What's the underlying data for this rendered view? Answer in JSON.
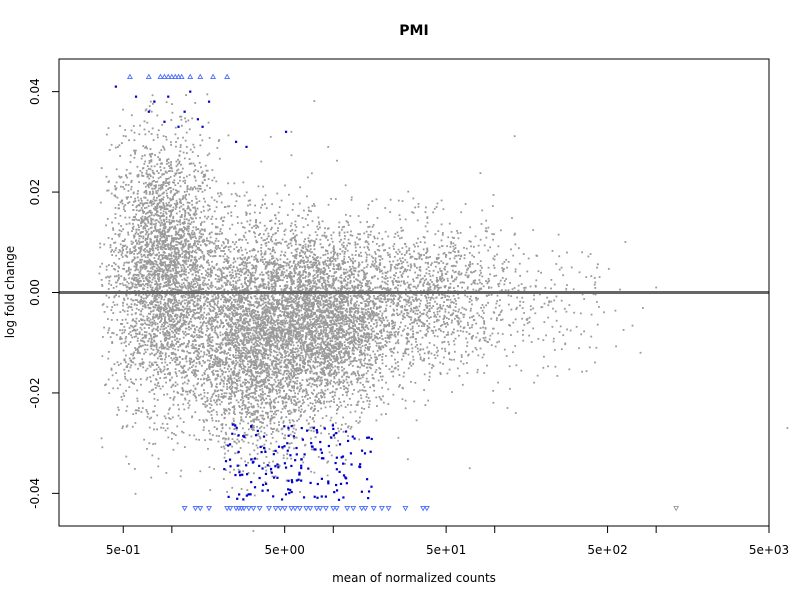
{
  "chart_data": {
    "type": "scatter",
    "title": "PMI",
    "xlabel": "mean of normalized counts",
    "ylabel": "log fold change",
    "x_scale": "log",
    "xlim": [
      0.2,
      5000
    ],
    "ylim": [
      -0.0465,
      0.0465
    ],
    "x_ticks": [
      {
        "value": 0.5,
        "label": "5e-01"
      },
      {
        "value": 5,
        "label": "5e+00"
      },
      {
        "value": 50,
        "label": "5e+01"
      },
      {
        "value": 500,
        "label": "5e+02"
      },
      {
        "value": 5000,
        "label": "5e+03"
      }
    ],
    "x_minor_ticks": [
      1,
      10,
      100,
      1000
    ],
    "y_ticks": [
      {
        "value": -0.04,
        "label": "-0.04"
      },
      {
        "value": -0.02,
        "label": "-0.02"
      },
      {
        "value": 0.0,
        "label": "0.00"
      },
      {
        "value": 0.02,
        "label": "0.02"
      },
      {
        "value": 0.04,
        "label": "0.04"
      }
    ],
    "reference_line": {
      "y": 0,
      "color": "#666666"
    },
    "grid": false,
    "colors": {
      "not_significant": "#9a9a9a",
      "significant": "#0000cc",
      "clipped_marker": "#4a6cff",
      "outlier_marker": "#999999"
    },
    "series": [
      {
        "kind": "not_significant_points",
        "clusters": [
          {
            "log10_x_mean": -0.05,
            "log10_x_sd": 0.17,
            "y_mean": 0.004,
            "y_sd": 0.013,
            "n": 3400
          },
          {
            "log10_x_mean": 0.5,
            "log10_x_sd": 0.2,
            "y_mean": -0.009,
            "y_sd": 0.011,
            "n": 3400
          },
          {
            "log10_x_mean": 0.95,
            "log10_x_sd": 0.2,
            "y_mean": -0.006,
            "y_sd": 0.009,
            "n": 3000
          },
          {
            "log10_x_mean": 1.55,
            "log10_x_sd": 0.3,
            "y_mean": -0.001,
            "y_sd": 0.0075,
            "n": 1500
          },
          {
            "log10_x_mean": 2.3,
            "log10_x_sd": 0.25,
            "y_mean": -0.003,
            "y_sd": 0.006,
            "n": 140
          }
        ],
        "scattered_points": [
          {
            "x": 3.2,
            "y": -0.0475
          },
          {
            "x": 4.1,
            "y": 0.031
          },
          {
            "x": 5.5,
            "y": 0.032
          },
          {
            "x": 9.3,
            "y": 0.029
          },
          {
            "x": 70,
            "y": -0.035
          },
          {
            "x": 120,
            "y": -0.023
          },
          {
            "x": 135,
            "y": -0.024
          },
          {
            "x": 200,
            "y": -0.015
          },
          {
            "x": 300,
            "y": 0.005
          },
          {
            "x": 400,
            "y": 0.0
          },
          {
            "x": 420,
            "y": 0.002
          },
          {
            "x": 800,
            "y": -0.012
          },
          {
            "x": 1000,
            "y": 0.001
          },
          {
            "x": 6500,
            "y": -0.027
          }
        ]
      },
      {
        "kind": "significant_up_points",
        "points": [
          {
            "x": 0.45,
            "y": 0.041
          },
          {
            "x": 0.6,
            "y": 0.039
          },
          {
            "x": 0.72,
            "y": 0.036
          },
          {
            "x": 0.78,
            "y": 0.038
          },
          {
            "x": 0.9,
            "y": 0.034
          },
          {
            "x": 0.95,
            "y": 0.039
          },
          {
            "x": 1.1,
            "y": 0.033
          },
          {
            "x": 1.2,
            "y": 0.036
          },
          {
            "x": 1.3,
            "y": 0.04
          },
          {
            "x": 1.45,
            "y": 0.0345
          },
          {
            "x": 1.55,
            "y": 0.033
          },
          {
            "x": 1.7,
            "y": 0.038
          },
          {
            "x": 2.5,
            "y": 0.03
          },
          {
            "x": 2.9,
            "y": 0.029
          },
          {
            "x": 5.1,
            "y": 0.032
          }
        ]
      },
      {
        "kind": "significant_down_points",
        "n": 170,
        "log10_x_range": [
          0.3,
          1.25
        ],
        "y_range": [
          -0.0415,
          -0.026
        ]
      },
      {
        "kind": "clipped_up_markers",
        "y": 0.043,
        "x": [
          0.55,
          0.72,
          0.85,
          0.9,
          0.95,
          1.0,
          1.05,
          1.1,
          1.15,
          1.3,
          1.5,
          1.8,
          2.2
        ]
      },
      {
        "kind": "clipped_down_markers",
        "y": -0.043,
        "x": [
          1.2,
          1.4,
          1.5,
          1.7,
          2.2,
          2.3,
          2.5,
          2.6,
          2.7,
          2.8,
          3.0,
          3.2,
          3.5,
          4.0,
          4.4,
          4.7,
          5.0,
          5.5,
          5.8,
          6.2,
          6.8,
          7.2,
          7.9,
          8.3,
          9.0,
          10.0,
          10.5,
          12.2,
          13.3,
          15.0,
          15.8,
          17.8,
          20.0,
          22.0,
          28.0,
          36.0,
          38.0,
          1330.0
        ]
      }
    ]
  }
}
